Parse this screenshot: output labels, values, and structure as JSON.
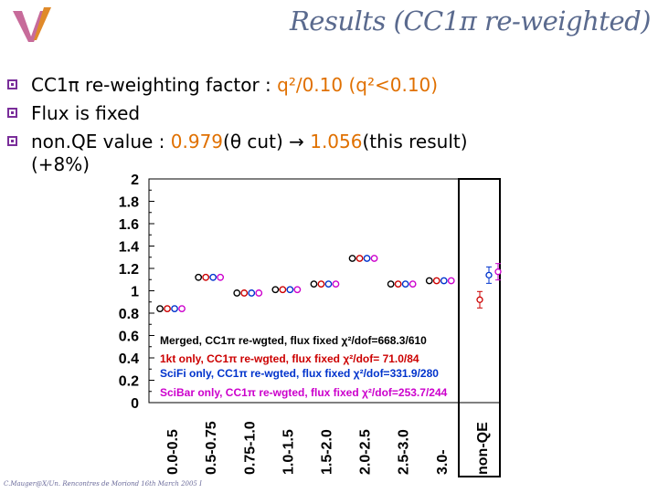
{
  "slide": {
    "title": "Results (CC1π re-weighted)",
    "bullets": [
      {
        "pre": "CC1π re-weighting factor : ",
        "hl": "q²/0.10 (q²<0.10)",
        "post": ""
      },
      {
        "pre": "Flux is fixed",
        "hl": "",
        "post": ""
      },
      {
        "pre": "non.QE value : ",
        "hl": "0.979",
        "post": "(θ cut) → ",
        "hl2": "1.056",
        "post2": "(this result)"
      }
    ],
    "continuation": "(+8%)",
    "footer": "C.Mauger@X/Un. Rencontres de Moriond 16th March 2005 I"
  },
  "colors": {
    "title": "#5a6a8e",
    "bullet_marker": "#7a2e9a",
    "highlight": "#e07000",
    "merged": "#000000",
    "onekt": "#cc0000",
    "scifi": "#0033cc",
    "scibar": "#cc00cc"
  },
  "chart_data": {
    "type": "scatter",
    "categories": [
      "0.0-0.5",
      "0.5-0.75",
      "0.75-1.0",
      "1.0-1.5",
      "1.5-2.0",
      "2.0-2.5",
      "2.5-3.0",
      "3.0-",
      "non-QE"
    ],
    "ylim": [
      0,
      2
    ],
    "yticks": [
      "0",
      "0.2",
      "0.4",
      "0.6",
      "0.8",
      "1",
      "1.2",
      "1.4",
      "1.6",
      "1.8",
      "2"
    ],
    "grid": false,
    "series": [
      {
        "name": "Merged, CC1π re-wgted, flux fixed χ²/dof=668.3/610",
        "color": "#000000",
        "values": [
          0.84,
          1.12,
          0.98,
          1.01,
          1.06,
          1.29,
          1.06,
          1.09,
          null
        ]
      },
      {
        "name": "1kt only, CC1π re-wgted, flux fixed χ²/dof= 71.0/84",
        "color": "#cc0000",
        "values": [
          0.84,
          1.12,
          0.98,
          1.01,
          1.06,
          1.29,
          1.06,
          1.09,
          0.92
        ]
      },
      {
        "name": "SciFi only, CC1π re-wgted, flux fixed χ²/dof=331.9/280",
        "color": "#0033cc",
        "values": [
          0.84,
          1.12,
          0.98,
          1.01,
          1.06,
          1.29,
          1.06,
          1.09,
          1.14
        ]
      },
      {
        "name": "SciBar only, CC1π re-wgted, flux fixed χ²/dof=253.7/244",
        "color": "#cc00cc",
        "values": [
          0.84,
          1.12,
          0.98,
          1.01,
          1.06,
          1.29,
          1.06,
          1.09,
          1.17
        ]
      }
    ],
    "legend_placement": "bottom-left"
  }
}
